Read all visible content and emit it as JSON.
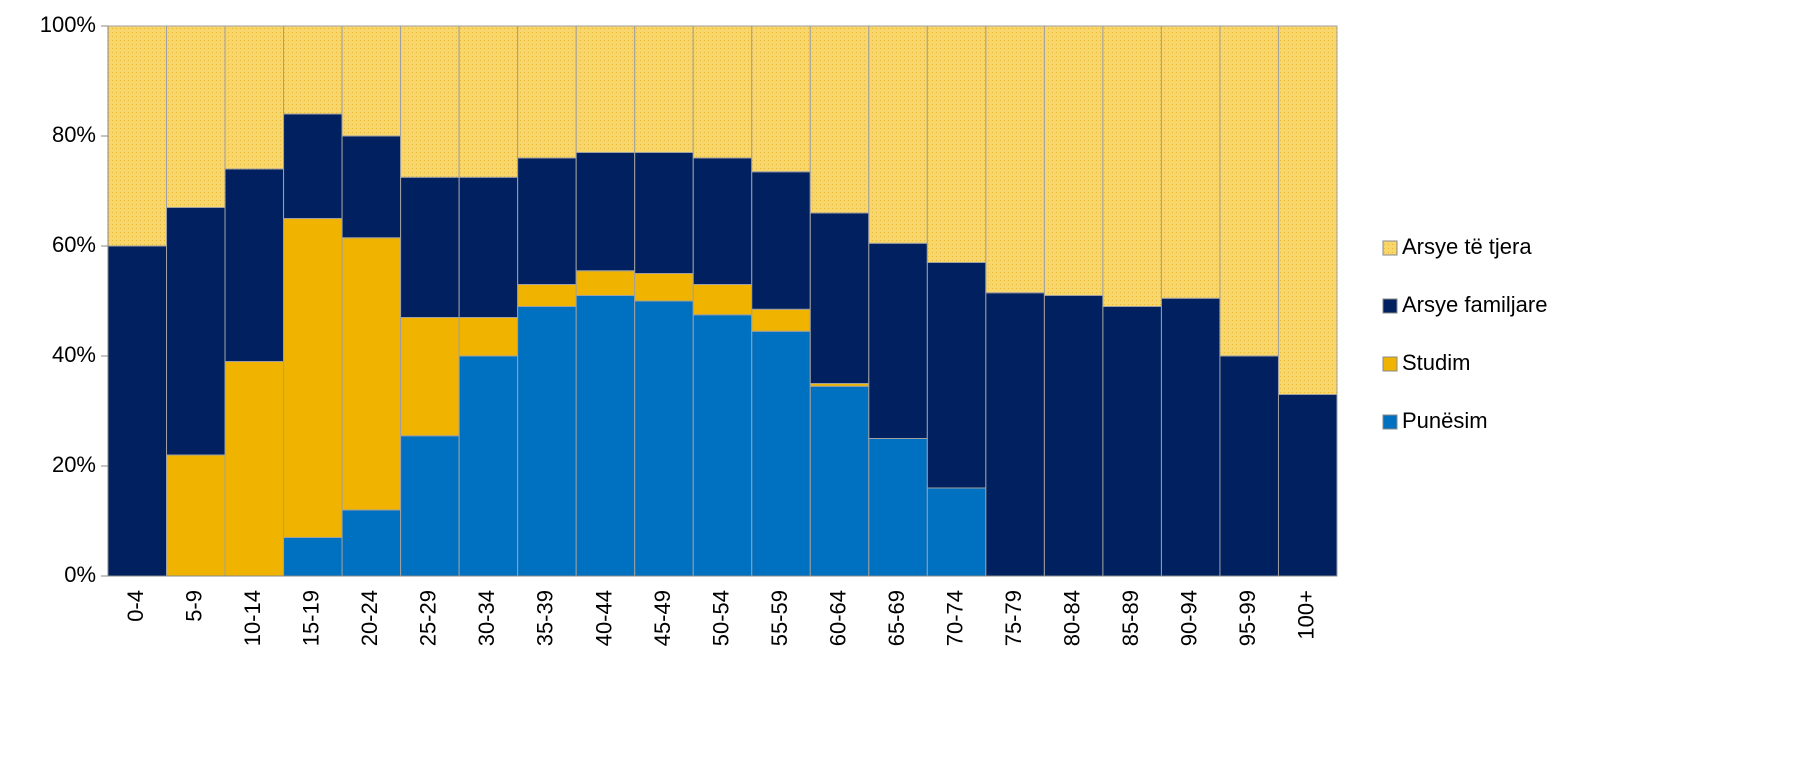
{
  "chart_data": {
    "type": "stacked_bar_100",
    "categories": [
      "0-4",
      "5-9",
      "10-14",
      "15-19",
      "20-24",
      "25-29",
      "30-34",
      "35-39",
      "40-44",
      "45-49",
      "50-54",
      "55-59",
      "60-64",
      "65-69",
      "70-74",
      "75-79",
      "80-84",
      "85-89",
      "90-94",
      "95-99",
      "100+"
    ],
    "series": [
      {
        "name": "Punësim",
        "color": "#0070c0",
        "values": [
          0,
          0,
          0,
          7,
          12,
          25.5,
          40,
          49,
          51,
          50,
          47.5,
          44.5,
          34.5,
          25,
          16,
          0,
          0,
          0,
          0,
          0,
          0
        ]
      },
      {
        "name": "Studim",
        "color": "#f0b400",
        "values": [
          0,
          22,
          39,
          58,
          49.5,
          21.5,
          7,
          4,
          4.5,
          5,
          5.5,
          4,
          0.5,
          0,
          0,
          0,
          0,
          0,
          0,
          0,
          0
        ]
      },
      {
        "name": "Arsye familjare",
        "color": "#002060",
        "values": [
          60,
          45,
          35,
          19,
          18.5,
          25.5,
          25.5,
          23,
          21.5,
          22,
          23,
          25,
          31,
          35.5,
          41,
          51.5,
          51,
          49,
          50.5,
          40,
          33
        ]
      },
      {
        "name": "Arsye të tjera",
        "color": "#f9d66b",
        "values": [
          40,
          33,
          26,
          16,
          20,
          27.5,
          27.5,
          24,
          23,
          23,
          24,
          26.5,
          34,
          39.5,
          43,
          48.5,
          49,
          51,
          49.5,
          60,
          67
        ]
      }
    ],
    "ylim": [
      0,
      100
    ],
    "yticks": [
      {
        "value": 0,
        "label": "0%"
      },
      {
        "value": 20,
        "label": "20%"
      },
      {
        "value": 40,
        "label": "40%"
      },
      {
        "value": 60,
        "label": "60%"
      },
      {
        "value": 80,
        "label": "80%"
      },
      {
        "value": 100,
        "label": "100%"
      }
    ],
    "legend": "right"
  }
}
